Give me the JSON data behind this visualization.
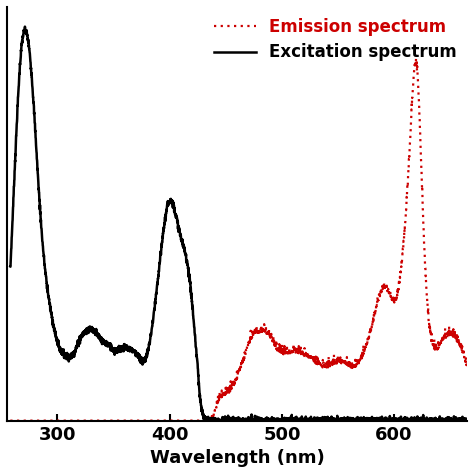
{
  "title": "",
  "xlabel": "Wavelength (nm)",
  "ylabel": "",
  "xlim": [
    255,
    665
  ],
  "ylim": [
    0,
    1.05
  ],
  "xticks": [
    300,
    400,
    500,
    600
  ],
  "excitation_color": "#000000",
  "emission_color": "#cc0000",
  "emission_label": "Emission spectrum",
  "excitation_label": "Excitation spectrum",
  "background_color": "#ffffff"
}
